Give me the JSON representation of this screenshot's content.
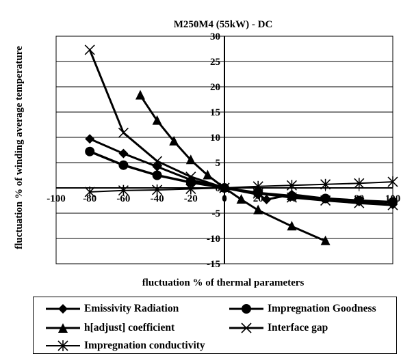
{
  "chart_data": {
    "type": "line",
    "title": "M250M4 (55kW) - DC",
    "xlabel": "fluctuation % of thermal parameters",
    "ylabel": "fluctuation  % of winding average temperature",
    "xlim": [
      -100,
      100
    ],
    "ylim": [
      -15,
      30
    ],
    "xticks": [
      "-100",
      "-80",
      "-60",
      "-40",
      "-20",
      "0",
      "20",
      "40",
      "60",
      "80",
      "100"
    ],
    "yticks": [
      "30",
      "25",
      "20",
      "15",
      "10",
      "5",
      "0",
      "-5",
      "-10",
      "-15"
    ],
    "grid": true,
    "legend_position": "bottom",
    "series": [
      {
        "name": "Emissivity Radiation",
        "marker": "diamond",
        "x": [
          -80,
          -60,
          -40,
          -20,
          0,
          20,
          25,
          40,
          60,
          80,
          100
        ],
        "y": [
          9.7,
          6.8,
          4.2,
          1.6,
          0,
          -1.3,
          -2.3,
          -1.3,
          -2.1,
          -2.7,
          -3.3
        ]
      },
      {
        "name": "Impregnation Goodness",
        "marker": "circle",
        "x": [
          -80,
          -60,
          -40,
          -20,
          0,
          20,
          40,
          60,
          80,
          100
        ],
        "y": [
          7.2,
          4.5,
          2.5,
          1.1,
          0,
          -1,
          -1.6,
          -2.1,
          -2.5,
          -2.8
        ]
      },
      {
        "name": "h[adjust] coefficient",
        "marker": "triangle",
        "x": [
          -50,
          -40,
          -30,
          -20,
          -10,
          0,
          10,
          20,
          40,
          60
        ],
        "y": [
          18.3,
          13.3,
          9.2,
          5.5,
          2.5,
          0,
          -2.3,
          -4.4,
          -7.6,
          -10.5
        ]
      },
      {
        "name": "Interface gap",
        "marker": "asterisk",
        "x": [
          -80,
          -60,
          -40,
          -20,
          0,
          20,
          40,
          60,
          80,
          100
        ],
        "y": [
          27.3,
          10.9,
          5.3,
          2.2,
          0,
          -1.1,
          -1.9,
          -2.5,
          -3.0,
          -3.4
        ]
      },
      {
        "name": "Impregnation conductivity",
        "marker": "star",
        "x": [
          -80,
          -60,
          -40,
          -20,
          0,
          20,
          40,
          60,
          80,
          100
        ],
        "y": [
          -0.8,
          -0.5,
          -0.4,
          -0.2,
          0,
          0.3,
          0.5,
          0.7,
          0.9,
          1.2
        ]
      }
    ]
  }
}
